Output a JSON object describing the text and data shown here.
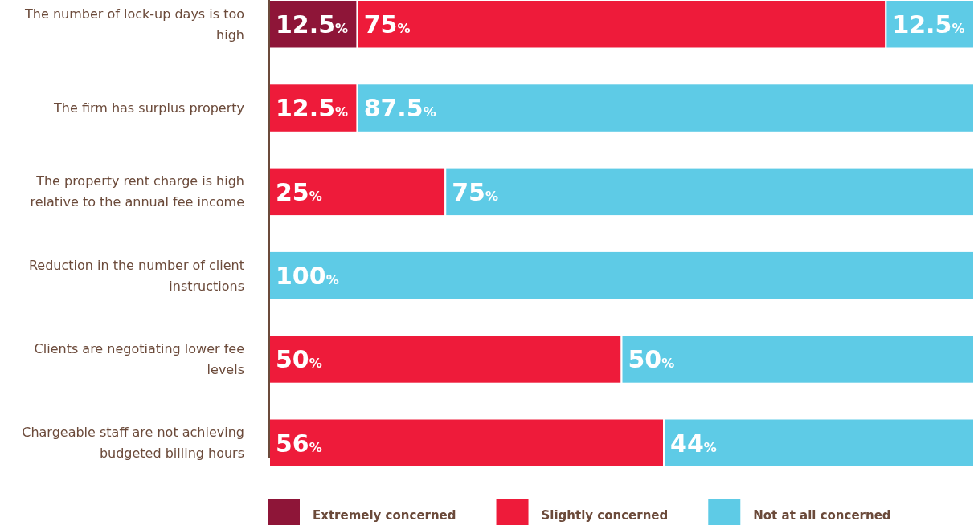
{
  "chart_data": {
    "type": "bar",
    "orientation": "horizontal",
    "stacked": true,
    "legend": "bottom",
    "categories": [
      "The number of lock-up days is too high",
      "The firm has surplus property",
      "The property rent charge is high relative to the annual fee income",
      "Reduction in the number of client instructions",
      "Clients are negotiating lower fee levels",
      "Chargeable staff are not achieving budgeted billing hours"
    ],
    "series": [
      {
        "name": "Extremely concerned",
        "color": "#8e1538",
        "values": [
          12.5,
          null,
          null,
          null,
          null,
          null
        ],
        "value_labels": [
          "12.5%",
          null,
          null,
          null,
          null,
          null
        ]
      },
      {
        "name": "Slightly concerned",
        "color": "#ee1b3a",
        "values": [
          75,
          12.5,
          25,
          null,
          50,
          56
        ],
        "value_labels": [
          "75%",
          "12.5%",
          "25%",
          null,
          "50%",
          "56%"
        ]
      },
      {
        "name": "Not at all concerned",
        "color": "#5ecbe6",
        "values": [
          12.5,
          87.5,
          75,
          100,
          50,
          44
        ],
        "value_labels": [
          "12.5%",
          "87.5%",
          "75%",
          "100%",
          "50%",
          "44%"
        ]
      }
    ]
  }
}
